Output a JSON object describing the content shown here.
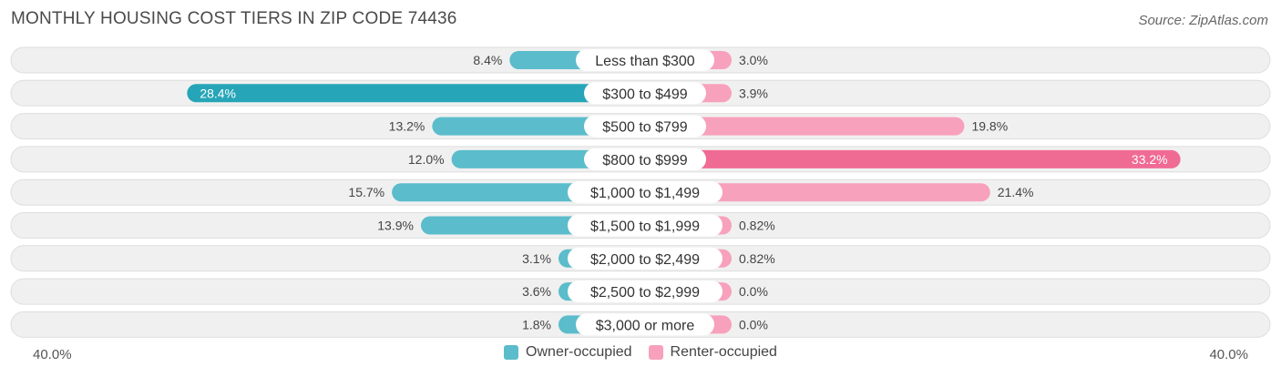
{
  "title": "MONTHLY HOUSING COST TIERS IN ZIP CODE 74436",
  "source": "Source: ZipAtlas.com",
  "colors": {
    "owner": "#5bbccb",
    "owner_strong": "#27a5b8",
    "renter": "#f7a1bc",
    "renter_strong": "#f06b94",
    "row_bg": "#f0f0f0",
    "row_border": "#dedede"
  },
  "chart_data": {
    "type": "bar",
    "orientation": "horizontal-diverging",
    "categories": [
      "Less than $300",
      "$300 to $499",
      "$500 to $799",
      "$800 to $999",
      "$1,000 to $1,499",
      "$1,500 to $1,999",
      "$2,000 to $2,499",
      "$2,500 to $2,999",
      "$3,000 or more"
    ],
    "series": [
      {
        "name": "Owner-occupied",
        "values": [
          8.4,
          28.4,
          13.2,
          12.0,
          15.7,
          13.9,
          3.1,
          3.6,
          1.8
        ],
        "labels": [
          "8.4%",
          "28.4%",
          "13.2%",
          "12.0%",
          "15.7%",
          "13.9%",
          "3.1%",
          "3.6%",
          "1.8%"
        ]
      },
      {
        "name": "Renter-occupied",
        "values": [
          3.0,
          3.9,
          19.8,
          33.2,
          21.4,
          0.82,
          0.82,
          0.0,
          0.0
        ],
        "labels": [
          "3.0%",
          "3.9%",
          "19.8%",
          "33.2%",
          "21.4%",
          "0.82%",
          "0.82%",
          "0.0%",
          "0.0%"
        ]
      }
    ],
    "xlim": [
      -40,
      40
    ],
    "axis_left_label": "40.0%",
    "axis_right_label": "40.0%",
    "legend": "bottom-center",
    "grid": false
  }
}
